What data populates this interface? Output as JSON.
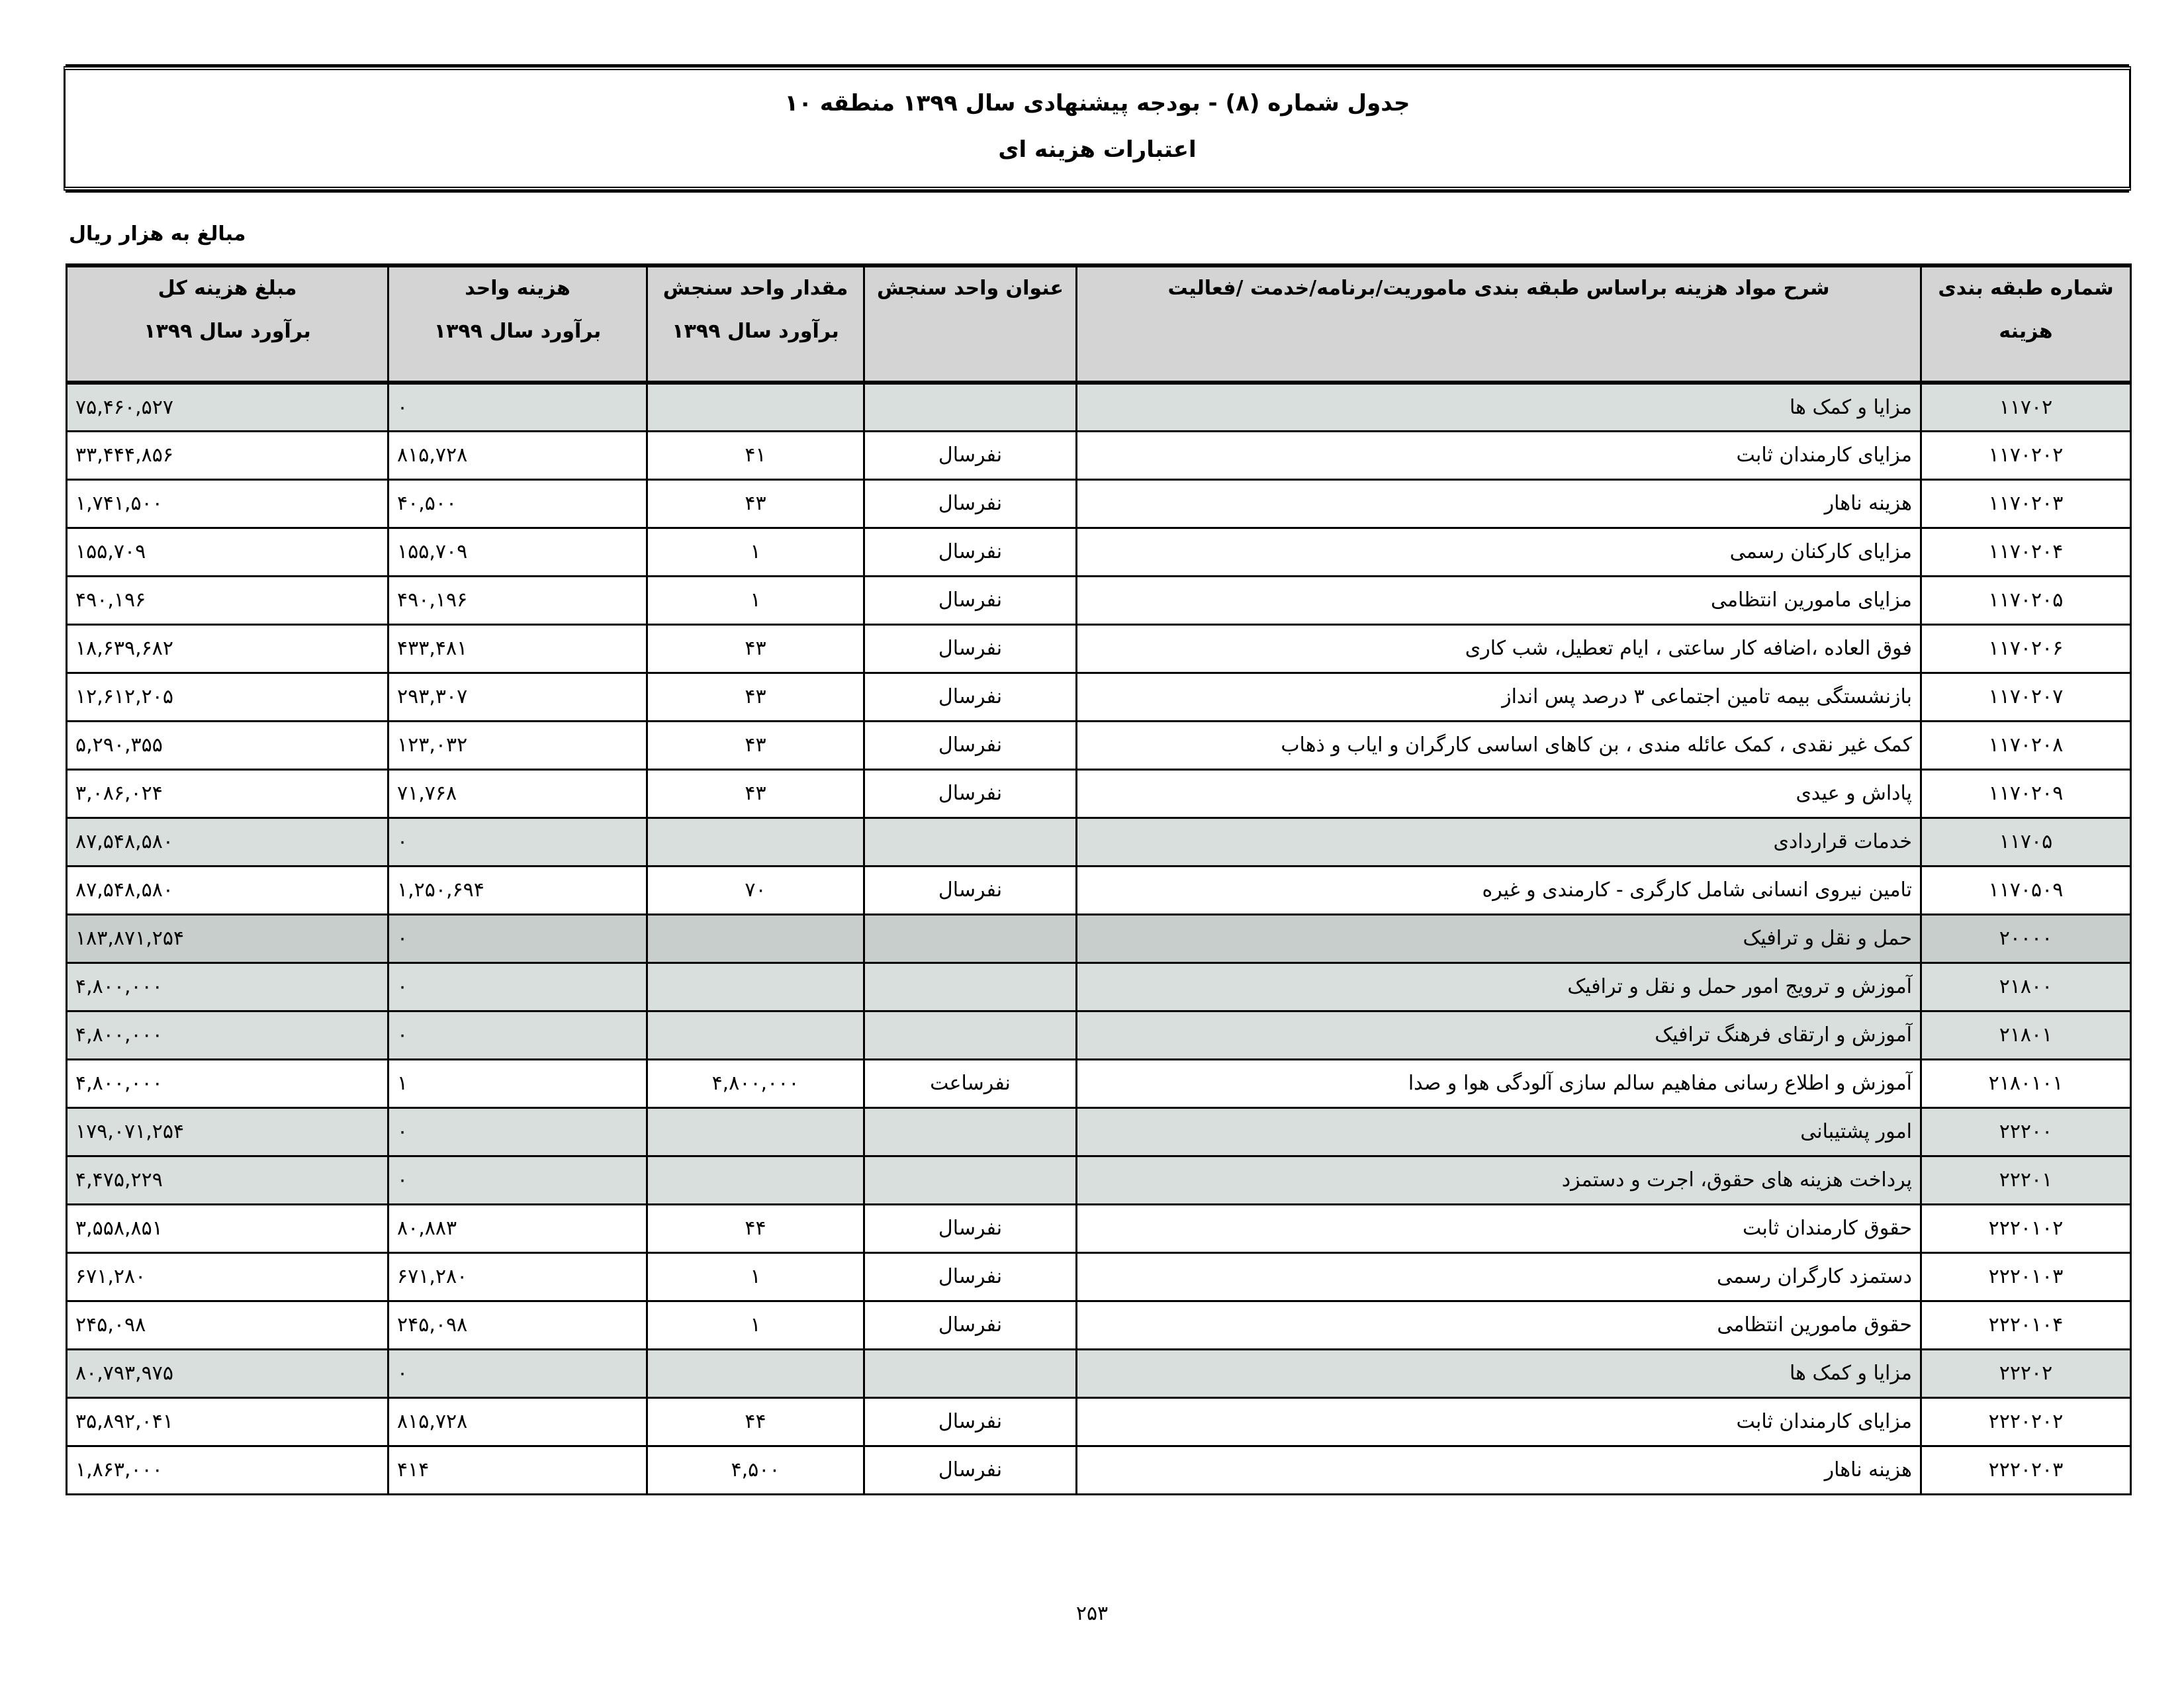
{
  "title": {
    "line1": "جدول شماره (۸) - بودجه پیشنهادی سال ۱۳۹۹ منطقه ۱۰",
    "line2": "اعتبارات هزینه ای"
  },
  "unit_note": "مبالغ به هزار ریال",
  "headers": {
    "code": [
      "شماره طبقه بندی",
      "هزینه"
    ],
    "desc": [
      "شرح مواد هزینه براساس طبقه بندی ماموریت/برنامه/خدمت /فعالیت",
      ""
    ],
    "unit_title": [
      "عنوان واحد سنجش",
      ""
    ],
    "qty": [
      "مقدار واحد سنجش",
      "برآورد سال  ۱۳۹۹"
    ],
    "unit_cost": [
      "هزینه واحد",
      "برآورد سال  ۱۳۹۹"
    ],
    "total": [
      "مبلغ هزینه کل",
      "برآورد سال  ۱۳۹۹"
    ]
  },
  "rows": [
    {
      "type": "group",
      "code": "۱۱۷۰۲",
      "desc": "مزایا و کمک ها",
      "unit_title": "",
      "qty": "",
      "unit_cost": "۰",
      "total": "۷۵,۴۶۰,۵۲۷"
    },
    {
      "type": "item",
      "code": "۱۱۷۰۲۰۲",
      "desc": "مزایای کارمندان ثابت",
      "unit_title": "نفرسال",
      "qty": "۴۱",
      "unit_cost": "۸۱۵,۷۲۸",
      "total": "۳۳,۴۴۴,۸۵۶"
    },
    {
      "type": "item",
      "code": "۱۱۷۰۲۰۳",
      "desc": "هزینه ناهار",
      "unit_title": "نفرسال",
      "qty": "۴۳",
      "unit_cost": "۴۰,۵۰۰",
      "total": "۱,۷۴۱,۵۰۰"
    },
    {
      "type": "item",
      "code": "۱۱۷۰۲۰۴",
      "desc": "مزایای کارکنان رسمی",
      "unit_title": "نفرسال",
      "qty": "۱",
      "unit_cost": "۱۵۵,۷۰۹",
      "total": "۱۵۵,۷۰۹"
    },
    {
      "type": "item",
      "code": "۱۱۷۰۲۰۵",
      "desc": "مزایای مامورین انتظامی",
      "unit_title": "نفرسال",
      "qty": "۱",
      "unit_cost": "۴۹۰,۱۹۶",
      "total": "۴۹۰,۱۹۶"
    },
    {
      "type": "item",
      "code": "۱۱۷۰۲۰۶",
      "desc": "فوق العاده ،اضافه کار ساعتی ، ایام تعطیل، شب کاری",
      "unit_title": "نفرسال",
      "qty": "۴۳",
      "unit_cost": "۴۳۳,۴۸۱",
      "total": "۱۸,۶۳۹,۶۸۲"
    },
    {
      "type": "item",
      "code": "۱۱۷۰۲۰۷",
      "desc": "بازنشستگی بیمه تامین اجتماعی ۳ درصد پس انداز",
      "unit_title": "نفرسال",
      "qty": "۴۳",
      "unit_cost": "۲۹۳,۳۰۷",
      "total": "۱۲,۶۱۲,۲۰۵"
    },
    {
      "type": "item",
      "code": "۱۱۷۰۲۰۸",
      "desc": "کمک غیر نقدی ، کمک عائله مندی ، بن کاهای اساسی کارگران و ایاب و ذهاب",
      "unit_title": "نفرسال",
      "qty": "۴۳",
      "unit_cost": "۱۲۳,۰۳۲",
      "total": "۵,۲۹۰,۳۵۵"
    },
    {
      "type": "item",
      "code": "۱۱۷۰۲۰۹",
      "desc": "پاداش و عیدی",
      "unit_title": "نفرسال",
      "qty": "۴۳",
      "unit_cost": "۷۱,۷۶۸",
      "total": "۳,۰۸۶,۰۲۴"
    },
    {
      "type": "group",
      "code": "۱۱۷۰۵",
      "desc": "خدمات قراردادی",
      "unit_title": "",
      "qty": "",
      "unit_cost": "۰",
      "total": "۸۷,۵۴۸,۵۸۰"
    },
    {
      "type": "item",
      "code": "۱۱۷۰۵۰۹",
      "desc": "تامین نیروی انسانی شامل کارگری - کارمندی و غیره",
      "unit_title": "نفرسال",
      "qty": "۷۰",
      "unit_cost": "۱,۲۵۰,۶۹۴",
      "total": "۸۷,۵۴۸,۵۸۰"
    },
    {
      "type": "major",
      "code": "۲۰۰۰۰",
      "desc": "حمل و نقل و ترافیک",
      "unit_title": "",
      "qty": "",
      "unit_cost": "۰",
      "total": "۱۸۳,۸۷۱,۲۵۴"
    },
    {
      "type": "group",
      "code": "۲۱۸۰۰",
      "desc": "آموزش و ترویج امور حمل و نقل و ترافیک",
      "unit_title": "",
      "qty": "",
      "unit_cost": "۰",
      "total": "۴,۸۰۰,۰۰۰"
    },
    {
      "type": "group",
      "code": "۲۱۸۰۱",
      "desc": "آموزش و ارتقای فرهنگ ترافیک",
      "unit_title": "",
      "qty": "",
      "unit_cost": "۰",
      "total": "۴,۸۰۰,۰۰۰"
    },
    {
      "type": "item",
      "code": "۲۱۸۰۱۰۱",
      "desc": "آموزش و اطلاع رسانی مفاهیم سالم سازی آلودگی هوا و صدا",
      "unit_title": "نفرساعت",
      "qty": "۴,۸۰۰,۰۰۰",
      "unit_cost": "۱",
      "total": "۴,۸۰۰,۰۰۰"
    },
    {
      "type": "group",
      "code": "۲۲۲۰۰",
      "desc": "امور پشتیبانی",
      "unit_title": "",
      "qty": "",
      "unit_cost": "۰",
      "total": "۱۷۹,۰۷۱,۲۵۴"
    },
    {
      "type": "group",
      "code": "۲۲۲۰۱",
      "desc": "پرداخت هزینه های حقوق، اجرت و دستمزد",
      "unit_title": "",
      "qty": "",
      "unit_cost": "۰",
      "total": "۴,۴۷۵,۲۲۹"
    },
    {
      "type": "item",
      "code": "۲۲۲۰۱۰۲",
      "desc": "حقوق کارمندان ثابت",
      "unit_title": "نفرسال",
      "qty": "۴۴",
      "unit_cost": "۸۰,۸۸۳",
      "total": "۳,۵۵۸,۸۵۱"
    },
    {
      "type": "item",
      "code": "۲۲۲۰۱۰۳",
      "desc": "دستمزد کارگران رسمی",
      "unit_title": "نفرسال",
      "qty": "۱",
      "unit_cost": "۶۷۱,۲۸۰",
      "total": "۶۷۱,۲۸۰"
    },
    {
      "type": "item",
      "code": "۲۲۲۰۱۰۴",
      "desc": "حقوق مامورین انتظامی",
      "unit_title": "نفرسال",
      "qty": "۱",
      "unit_cost": "۲۴۵,۰۹۸",
      "total": "۲۴۵,۰۹۸"
    },
    {
      "type": "group",
      "code": "۲۲۲۰۲",
      "desc": "مزایا و کمک ها",
      "unit_title": "",
      "qty": "",
      "unit_cost": "۰",
      "total": "۸۰,۷۹۳,۹۷۵"
    },
    {
      "type": "item",
      "code": "۲۲۲۰۲۰۲",
      "desc": "مزایای کارمندان ثابت",
      "unit_title": "نفرسال",
      "qty": "۴۴",
      "unit_cost": "۸۱۵,۷۲۸",
      "total": "۳۵,۸۹۲,۰۴۱"
    },
    {
      "type": "item",
      "code": "۲۲۲۰۲۰۳",
      "desc": "هزینه ناهار",
      "unit_title": "نفرسال",
      "qty": "۴,۵۰۰",
      "unit_cost": "۴۱۴",
      "total": "۱,۸۶۳,۰۰۰"
    }
  ],
  "colors": {
    "header_bg": "#d4d4d4",
    "group_bg": "#d9dfdc",
    "major_bg": "#c7cecb"
  },
  "page_number": "۲۵۳"
}
